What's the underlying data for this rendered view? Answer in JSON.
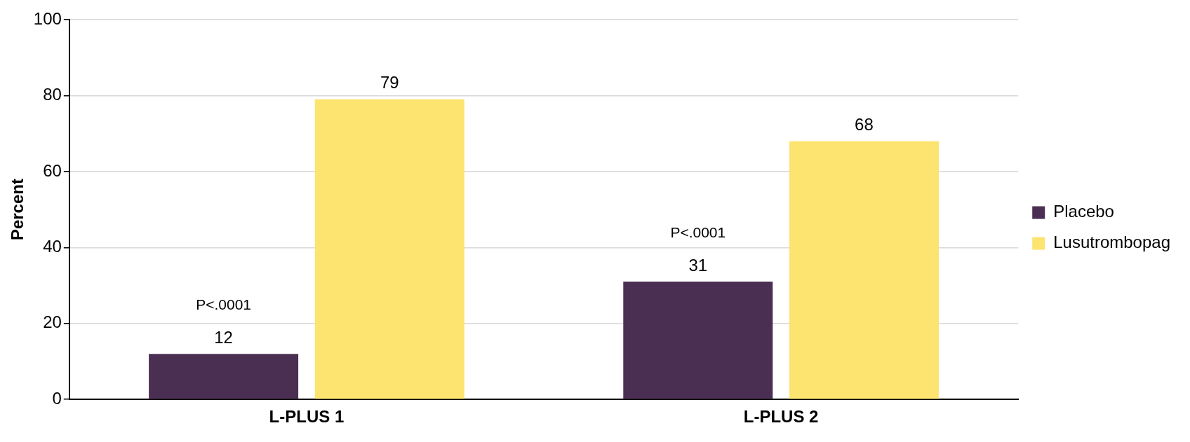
{
  "chart_data": {
    "type": "bar",
    "ylabel": "Percent",
    "categories": [
      "L-PLUS 1",
      "L-PLUS 2"
    ],
    "series": [
      {
        "name": "Placebo",
        "color": "#4b2f52",
        "values": [
          12,
          31
        ]
      },
      {
        "name": "Lusutrombopag",
        "color": "#fde36f",
        "values": [
          79,
          68
        ]
      }
    ],
    "ylim": [
      0,
      100
    ],
    "yticks": [
      0,
      20,
      40,
      60,
      80,
      100
    ],
    "grid": "y",
    "legend": "right",
    "data_labels": true,
    "annotations": [
      "P<.0001",
      "P<.0001"
    ]
  }
}
